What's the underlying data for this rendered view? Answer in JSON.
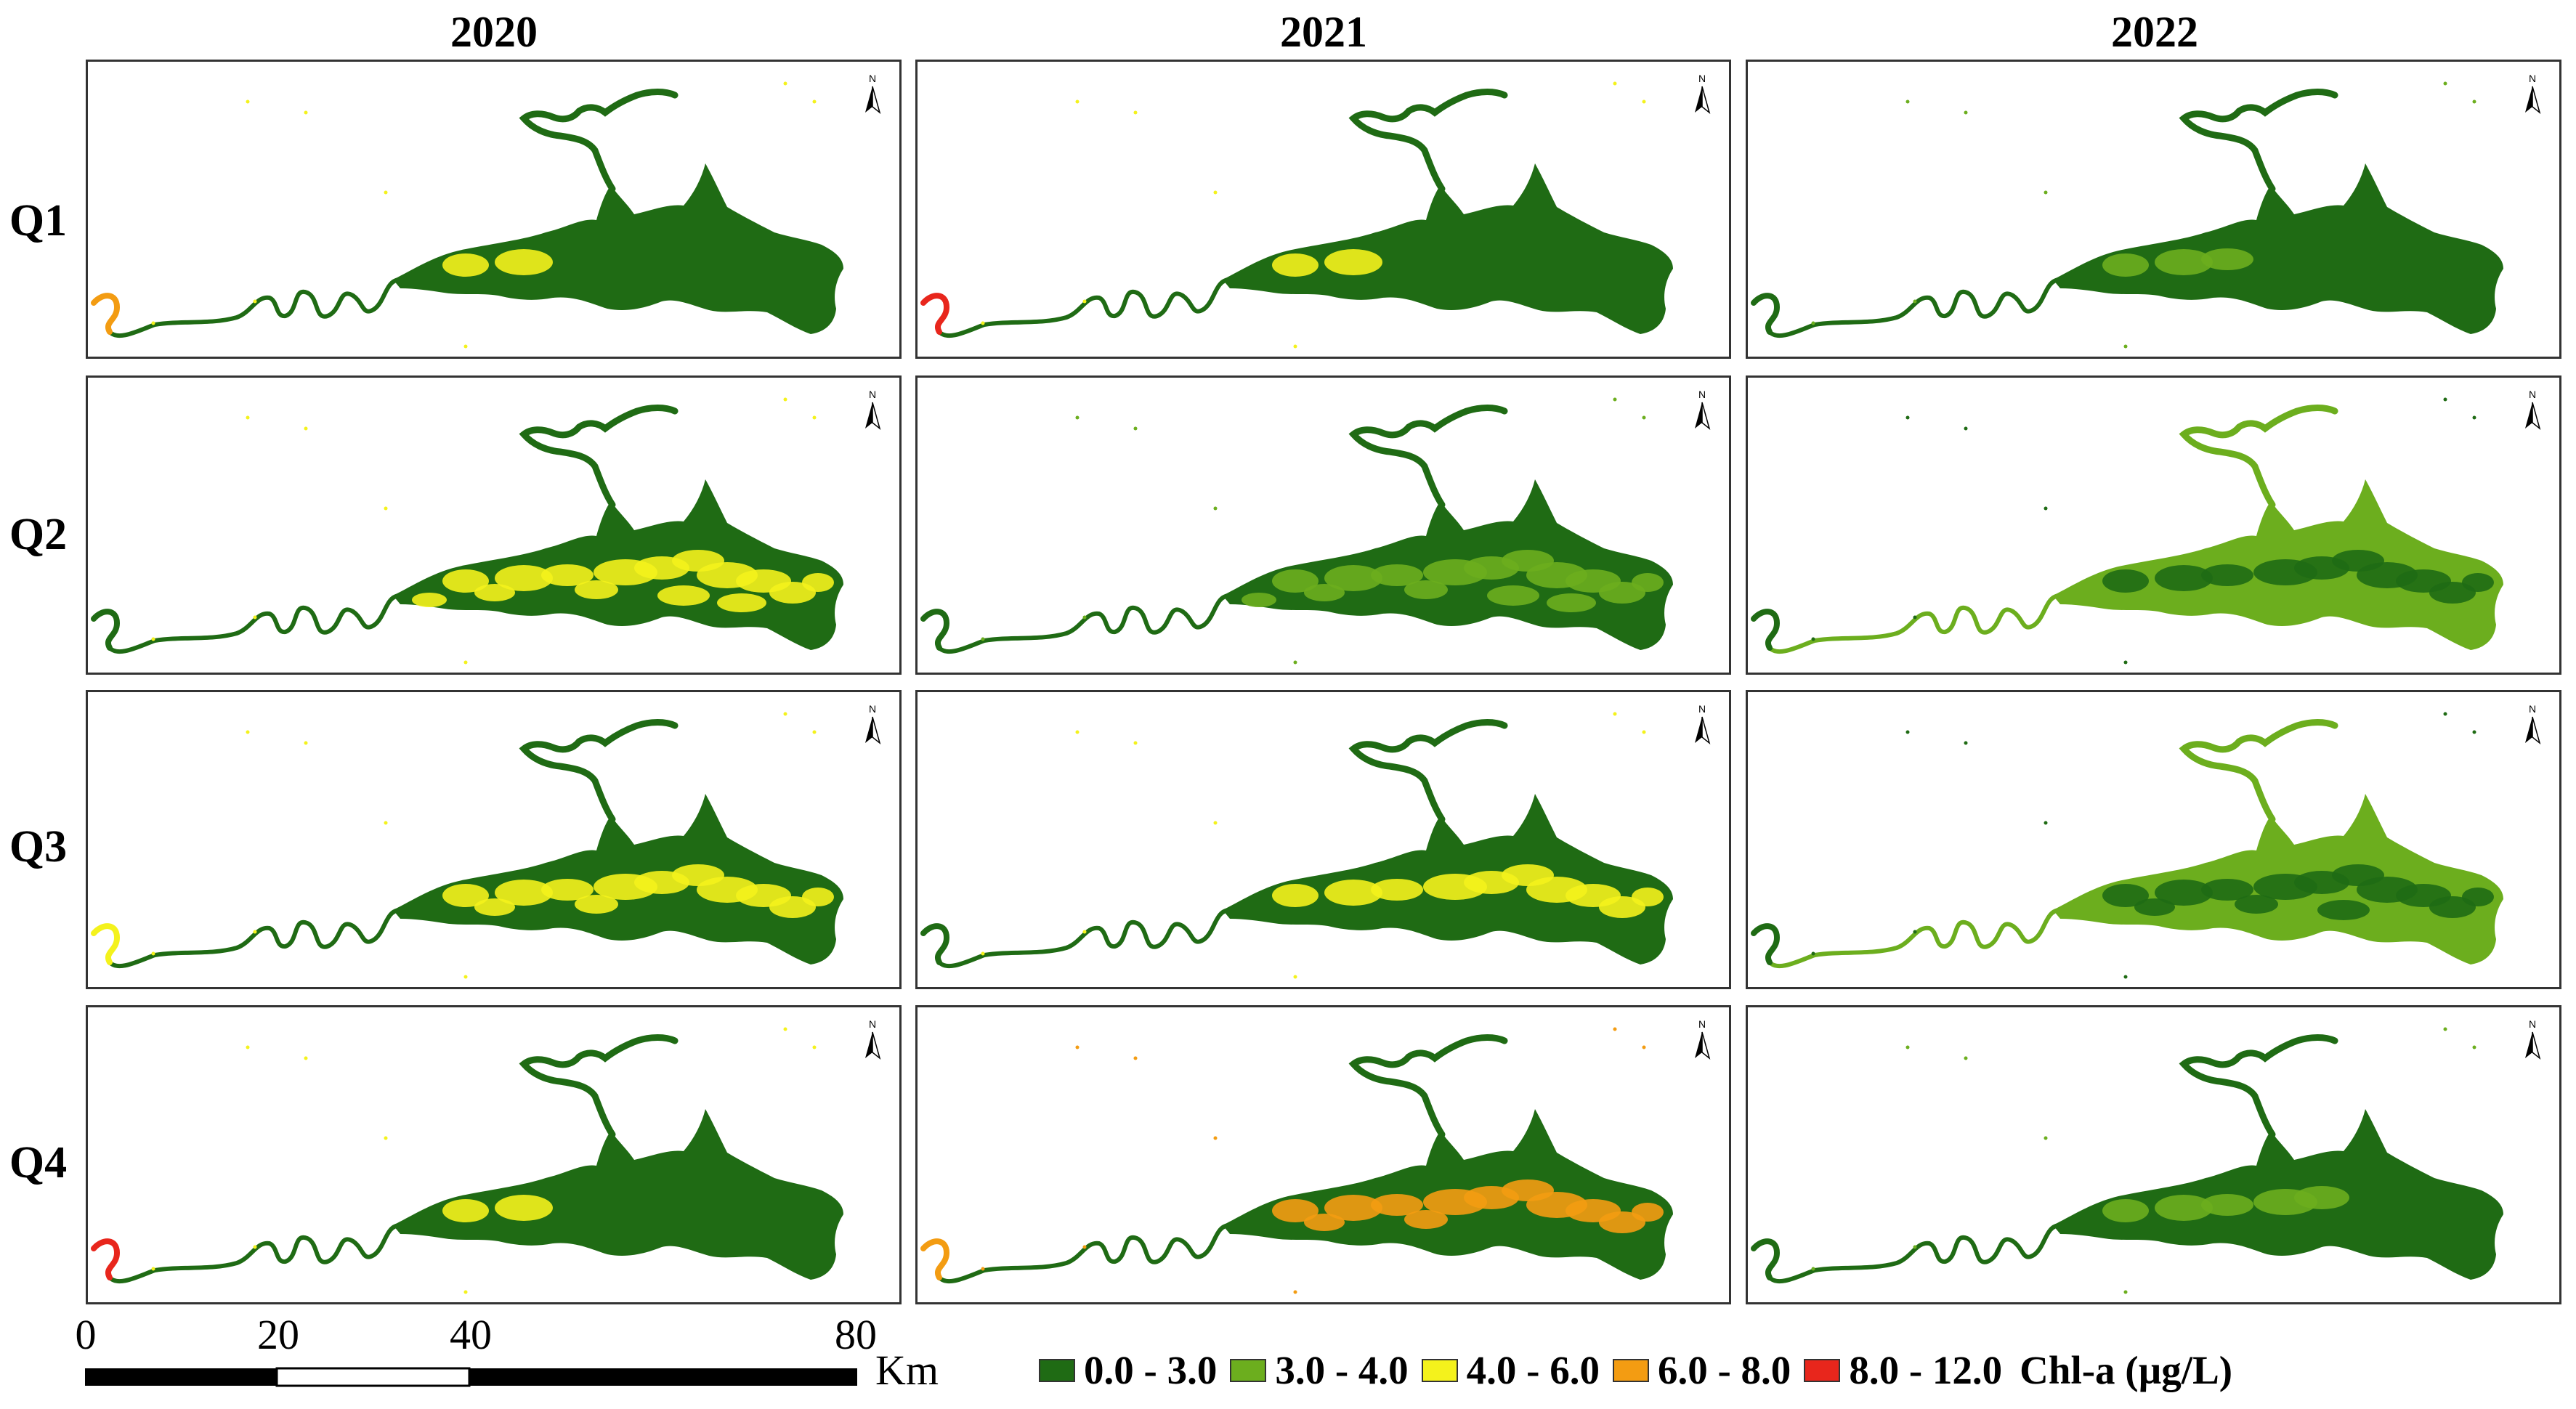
{
  "columns": [
    "2020",
    "2021",
    "2022"
  ],
  "rows": [
    {
      "label": "Q1",
      "maps": [
        {
          "water_class": "0.0 - 3.0",
          "secondary": "4.0 - 6.0",
          "secondary_amount": 0.05,
          "inlet": "6.0 - 8.0"
        },
        {
          "water_class": "0.0 - 3.0",
          "secondary": "4.0 - 6.0",
          "secondary_amount": 0.05,
          "inlet": "8.0 - 12.0"
        },
        {
          "water_class": "0.0 - 3.0",
          "secondary": "3.0 - 4.0",
          "secondary_amount": 0.1,
          "inlet": "0.0 - 3.0"
        }
      ]
    },
    {
      "label": "Q2",
      "maps": [
        {
          "water_class": "0.0 - 3.0",
          "secondary": "4.0 - 6.0",
          "secondary_amount": 0.45,
          "inlet": "0.0 - 3.0"
        },
        {
          "water_class": "0.0 - 3.0",
          "secondary": "3.0 - 4.0",
          "secondary_amount": 0.45,
          "inlet": "0.0 - 3.0"
        },
        {
          "water_class": "3.0 - 4.0",
          "secondary": "0.0 - 3.0",
          "secondary_amount": 0.3,
          "inlet": "0.0 - 3.0"
        }
      ]
    },
    {
      "label": "Q3",
      "maps": [
        {
          "water_class": "0.0 - 3.0",
          "secondary": "4.0 - 6.0",
          "secondary_amount": 0.35,
          "inlet": "4.0 - 6.0"
        },
        {
          "water_class": "0.0 - 3.0",
          "secondary": "4.0 - 6.0",
          "secondary_amount": 0.3,
          "inlet": "0.0 - 3.0"
        },
        {
          "water_class": "3.0 - 4.0",
          "secondary": "0.0 - 3.0",
          "secondary_amount": 0.4,
          "inlet": "0.0 - 3.0"
        }
      ]
    },
    {
      "label": "Q4",
      "maps": [
        {
          "water_class": "0.0 - 3.0",
          "secondary": "4.0 - 6.0",
          "secondary_amount": 0.05,
          "inlet": "8.0 - 12.0"
        },
        {
          "water_class": "0.0 - 3.0",
          "secondary": "6.0 - 8.0",
          "secondary_amount": 0.35,
          "inlet": "6.0 - 8.0"
        },
        {
          "water_class": "0.0 - 3.0",
          "secondary": "3.0 - 4.0",
          "secondary_amount": 0.15,
          "inlet": "0.0 - 3.0"
        }
      ]
    }
  ],
  "north_arrow": {
    "label": "N"
  },
  "scale_bar": {
    "ticks": [
      "0",
      "20",
      "40",
      "80"
    ],
    "tick_values": [
      0,
      20,
      40,
      80
    ],
    "unit": "Km"
  },
  "legend": {
    "title": "Chl-a (µg/L)",
    "classes": [
      {
        "label": "0.0 - 3.0",
        "color": "#1f6b14"
      },
      {
        "label": "3.0 - 4.0",
        "color": "#6cae1e"
      },
      {
        "label": "4.0 - 6.0",
        "color": "#f4f21c"
      },
      {
        "label": "6.0 - 8.0",
        "color": "#f39c12"
      },
      {
        "label": "8.0 - 12.0",
        "color": "#e8261c"
      }
    ]
  }
}
